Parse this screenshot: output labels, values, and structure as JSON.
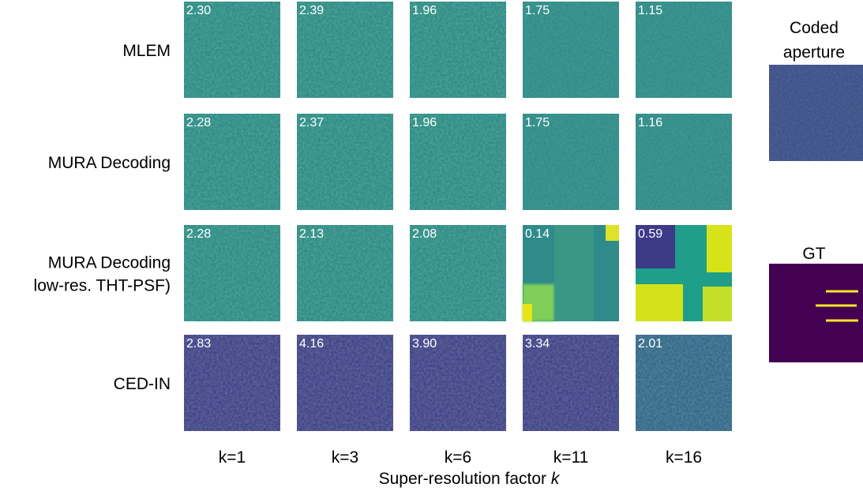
{
  "rows": [
    {
      "label": [
        "MLEM"
      ],
      "scores": [
        "2.30",
        "2.39",
        "1.96",
        "1.75",
        "1.15"
      ]
    },
    {
      "label": [
        "MURA Decoding"
      ],
      "scores": [
        "2.28",
        "2.37",
        "1.96",
        "1.75",
        "1.16"
      ]
    },
    {
      "label": [
        "MURA Decoding",
        "low-res. THT-PSF)"
      ],
      "scores": [
        "2.28",
        "2.13",
        "2.08",
        "0.14",
        "0.59"
      ]
    },
    {
      "label": [
        "CED-IN"
      ],
      "scores": [
        "2.83",
        "4.16",
        "3.90",
        "3.34",
        "2.01"
      ]
    }
  ],
  "columns": [
    "k=1",
    "k=3",
    "k=6",
    "k=11",
    "k=16"
  ],
  "xlabel": {
    "text": "Super-resolution factor ",
    "var": "k"
  },
  "side": {
    "coded": [
      "Coded",
      "aperture"
    ],
    "gt": "GT"
  }
}
